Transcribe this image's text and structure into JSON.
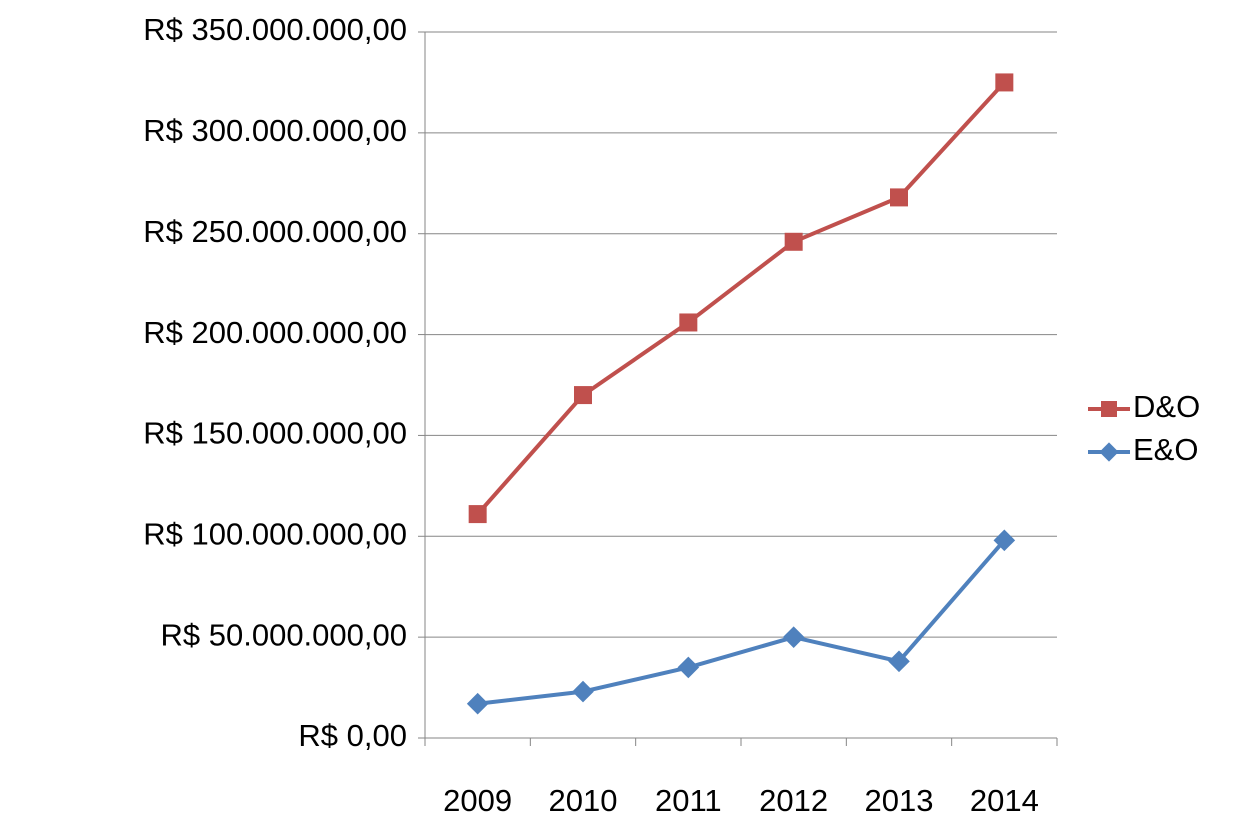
{
  "chart_data": {
    "type": "line",
    "categories": [
      "2009",
      "2010",
      "2011",
      "2012",
      "2013",
      "2014"
    ],
    "series": [
      {
        "name": "D&O",
        "color": "#c0504d",
        "marker": "square",
        "values": [
          111000000,
          170000000,
          206000000,
          246000000,
          268000000,
          325000000
        ]
      },
      {
        "name": "E&O",
        "color": "#4f81bd",
        "marker": "diamond",
        "values": [
          17000000,
          23000000,
          35000000,
          50000000,
          38000000,
          98000000
        ]
      }
    ],
    "ylim": [
      0,
      350000000
    ],
    "yticks": [
      {
        "value": 0,
        "label": "R$ 0,00"
      },
      {
        "value": 50000000,
        "label": "R$ 50.000.000,00"
      },
      {
        "value": 100000000,
        "label": "R$ 100.000.000,00"
      },
      {
        "value": 150000000,
        "label": "R$ 150.000.000,00"
      },
      {
        "value": 200000000,
        "label": "R$ 200.000.000,00"
      },
      {
        "value": 250000000,
        "label": "R$ 250.000.000,00"
      },
      {
        "value": 300000000,
        "label": "R$ 300.000.000,00"
      },
      {
        "value": 350000000,
        "label": "R$ 350.000.000,00"
      }
    ],
    "grid": true,
    "legend": "right"
  }
}
